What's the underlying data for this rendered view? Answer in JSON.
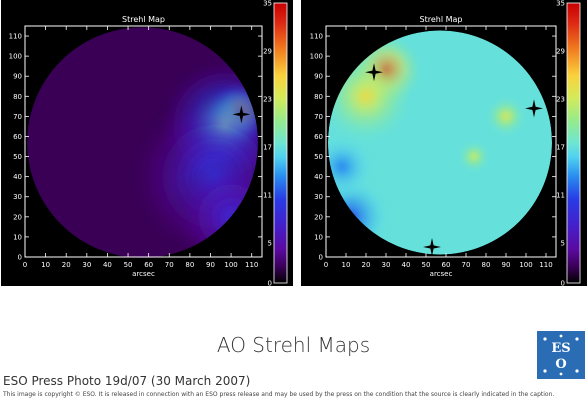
{
  "caption": {
    "title": "AO Strehl Maps",
    "press_photo": "ESO Press Photo 19d/07 (30 March 2007)",
    "copyright": "This image is copyright © ESO. It is released in connection with an ESO press release and may be used by the press on the condition that the source is clearly indicated in the caption."
  },
  "logo": {
    "text": "ESO",
    "color": "#2a6db5"
  },
  "chart_data": [
    {
      "type": "heatmap",
      "title": "Strehl Map",
      "xlabel": "arcsec",
      "ylabel": "",
      "xlim": [
        0,
        115
      ],
      "ylim": [
        0,
        115
      ],
      "x_ticks": [
        0,
        10,
        20,
        30,
        40,
        50,
        60,
        70,
        80,
        90,
        100,
        110
      ],
      "y_ticks": [
        0,
        10,
        20,
        30,
        40,
        50,
        60,
        70,
        80,
        90,
        100,
        110
      ],
      "colorbar": {
        "min": 0,
        "max": 35,
        "ticks": [
          0,
          5,
          11,
          17,
          23,
          29,
          35
        ]
      },
      "field_center": [
        57,
        57
      ],
      "field_radius": 56,
      "background_level": 2,
      "blobs": [
        {
          "x": 104,
          "y": 72,
          "level": 33,
          "spread": 8
        },
        {
          "x": 97,
          "y": 66,
          "level": 18,
          "spread": 16
        },
        {
          "x": 92,
          "y": 40,
          "level": 10,
          "spread": 20
        },
        {
          "x": 100,
          "y": 20,
          "level": 8,
          "spread": 14
        }
      ],
      "stars": [
        {
          "x": 105,
          "y": 71
        }
      ]
    },
    {
      "type": "heatmap",
      "title": "Strehl Map",
      "xlabel": "arcsec",
      "ylabel": "",
      "xlim": [
        0,
        115
      ],
      "ylim": [
        0,
        115
      ],
      "x_ticks": [
        0,
        10,
        20,
        30,
        40,
        50,
        60,
        70,
        80,
        90,
        100,
        110
      ],
      "y_ticks": [
        0,
        10,
        20,
        30,
        40,
        50,
        60,
        70,
        80,
        90,
        100,
        110
      ],
      "colorbar": {
        "min": 0,
        "max": 35,
        "ticks": [
          0,
          5,
          11,
          17,
          23,
          29,
          35
        ]
      },
      "field_center": [
        57,
        57
      ],
      "field_radius": 56,
      "background_level": 17,
      "blobs": [
        {
          "x": 30,
          "y": 93,
          "level": 32,
          "spread": 9
        },
        {
          "x": 20,
          "y": 80,
          "level": 25,
          "spread": 12
        },
        {
          "x": 90,
          "y": 70,
          "level": 24,
          "spread": 5
        },
        {
          "x": 74,
          "y": 50,
          "level": 23,
          "spread": 4
        },
        {
          "x": 12,
          "y": 20,
          "level": 11,
          "spread": 10
        },
        {
          "x": 8,
          "y": 45,
          "level": 13,
          "spread": 8
        }
      ],
      "stars": [
        {
          "x": 24,
          "y": 92
        },
        {
          "x": 104,
          "y": 74
        },
        {
          "x": 53,
          "y": 5
        }
      ]
    }
  ]
}
